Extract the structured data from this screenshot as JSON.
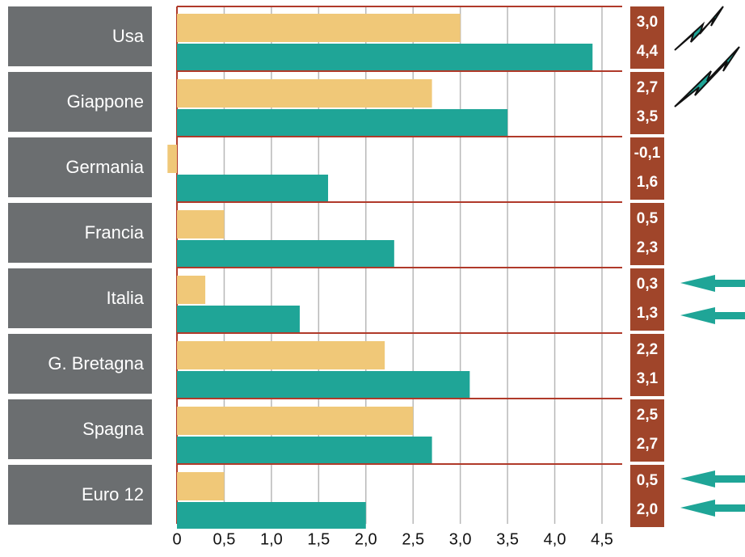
{
  "chart_data": {
    "type": "bar",
    "orientation": "horizontal",
    "categories": [
      "Usa",
      "Giappone",
      "Germania",
      "Francia",
      "Italia",
      "G. Bretagna",
      "Spagna",
      "Euro 12"
    ],
    "series": [
      {
        "color": "#f0c878",
        "values": [
          3.0,
          2.7,
          -0.1,
          0.5,
          0.3,
          2.2,
          2.5,
          0.5
        ],
        "value_labels": [
          "3,0",
          "2,7",
          "-0,1",
          "0,5",
          "0,3",
          "2,2",
          "2,5",
          "0,5"
        ]
      },
      {
        "color": "#1fa597",
        "values": [
          4.4,
          3.5,
          1.6,
          2.3,
          1.3,
          3.1,
          2.7,
          2.0
        ],
        "value_labels": [
          "4,4",
          "3,5",
          "1,6",
          "2,3",
          "1,3",
          "3,1",
          "2,7",
          "2,0"
        ]
      }
    ],
    "xlim": [
      0,
      4.5
    ],
    "xticks": [
      0,
      {
        "value": 0.5,
        "label": "0,5"
      },
      {
        "value": 1.0,
        "label": "1,0"
      },
      {
        "value": 1.5,
        "label": "1,5"
      },
      {
        "value": 2.0,
        "label": "2,0"
      },
      {
        "value": 2.5,
        "label": "2,5"
      },
      {
        "value": 3.0,
        "label": "3,0"
      },
      {
        "value": 3.5,
        "label": "3,5"
      },
      {
        "value": 4.0,
        "label": "4,0"
      },
      {
        "value": 4.5,
        "label": "4,5"
      }
    ],
    "grid": true
  }
}
